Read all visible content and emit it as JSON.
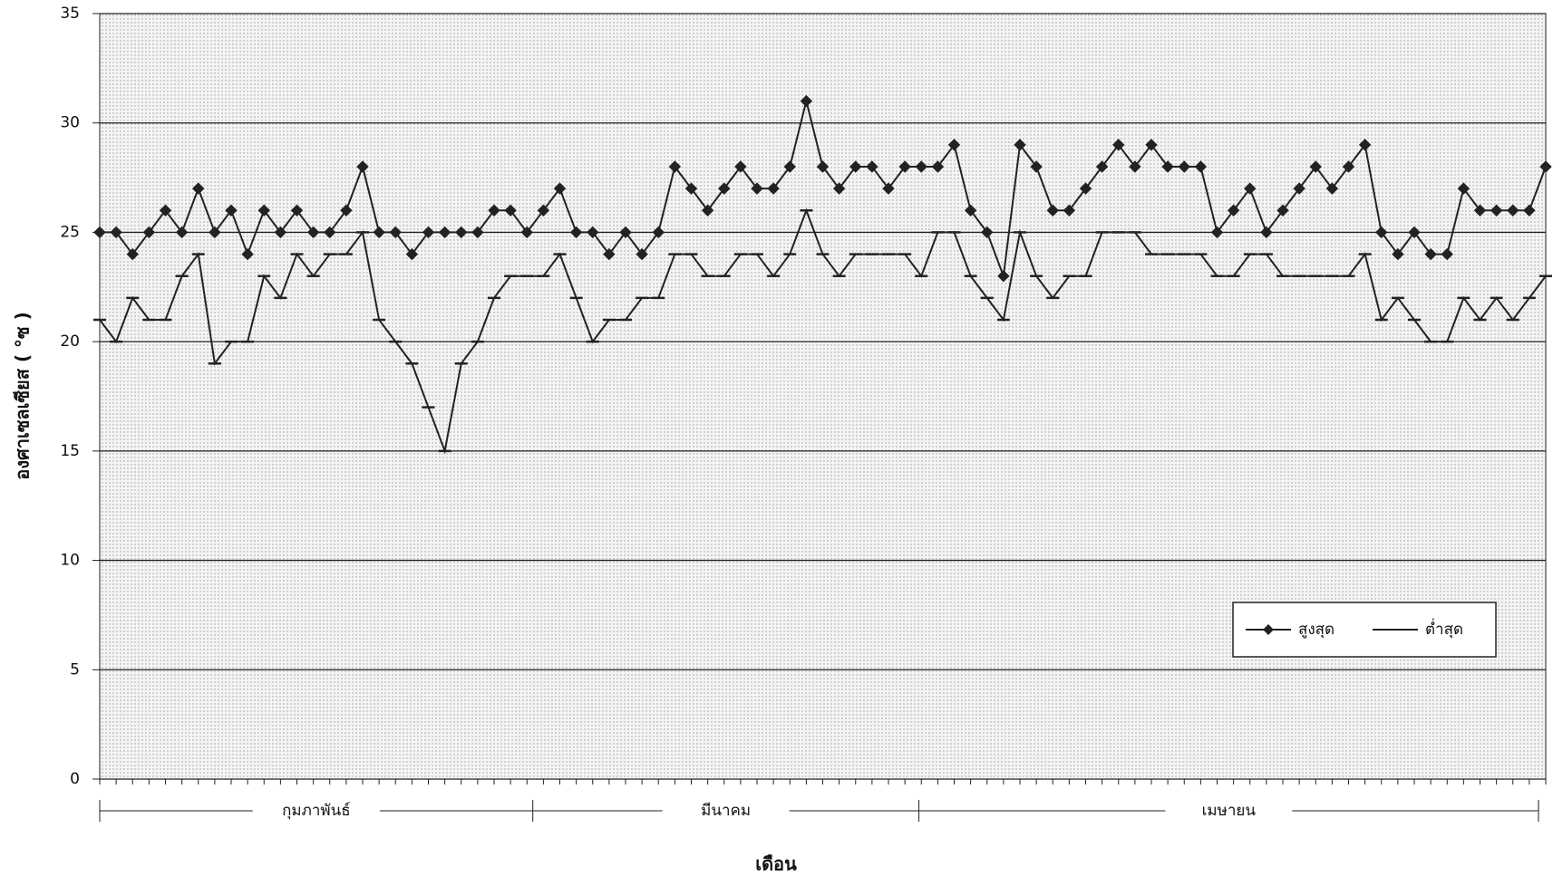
{
  "chart_data": {
    "type": "line",
    "y_label": "องศาเซลเซียส ( °ซ )",
    "x_label": "เดือน",
    "months": [
      "กุมภาพันธ์",
      "มีนาคม",
      "เมษายน"
    ],
    "categories": [
      null,
      null,
      null,
      null,
      null,
      null,
      null,
      null,
      null,
      null,
      null,
      null,
      null,
      null,
      null,
      null,
      null,
      null,
      null,
      null,
      null,
      null,
      null,
      null,
      null,
      null,
      null,
      null,
      null,
      null,
      null,
      null,
      null,
      null,
      null,
      null,
      null,
      null,
      null,
      null,
      null,
      null,
      null,
      null,
      null,
      null,
      null,
      null,
      null,
      null,
      null,
      null,
      null,
      null,
      null,
      null,
      null,
      null,
      null,
      null,
      null,
      null,
      null,
      null,
      null,
      null,
      null,
      null,
      null,
      null,
      null,
      null,
      null,
      null,
      null,
      null,
      null,
      null,
      null,
      null,
      null,
      null,
      null,
      null,
      null,
      null,
      null,
      null,
      null
    ],
    "series": [
      {
        "name": "สูงสุด",
        "color": "#222222",
        "marker": "diamond",
        "values": [
          25,
          25,
          24,
          25,
          26,
          25,
          27,
          25,
          26,
          24,
          26,
          25,
          26,
          25,
          25,
          26,
          28,
          25,
          25,
          24,
          25,
          25,
          25,
          25,
          26,
          26,
          25,
          26,
          27,
          25,
          25,
          24,
          25,
          24,
          25,
          28,
          27,
          26,
          27,
          28,
          27,
          27,
          28,
          31,
          28,
          27,
          28,
          28,
          27,
          28,
          28,
          28,
          29,
          26,
          25,
          23,
          29,
          28,
          26,
          26,
          27,
          28,
          29,
          28,
          29,
          28,
          28,
          28,
          25,
          26,
          27,
          25,
          26,
          27,
          28,
          27,
          28,
          29,
          25,
          24,
          25,
          24,
          24,
          27,
          26,
          26,
          26,
          26,
          28
        ]
      },
      {
        "name": "ต่ำสุด",
        "color": "#222222",
        "marker": "dash",
        "values": [
          21,
          20,
          22,
          21,
          21,
          23,
          24,
          19,
          20,
          20,
          23,
          22,
          24,
          23,
          24,
          24,
          25,
          21,
          20,
          19,
          17,
          15,
          19,
          20,
          22,
          23,
          23,
          23,
          24,
          22,
          20,
          21,
          21,
          22,
          22,
          24,
          24,
          23,
          23,
          24,
          24,
          23,
          24,
          26,
          24,
          23,
          24,
          24,
          24,
          24,
          23,
          25,
          25,
          23,
          22,
          21,
          25,
          23,
          22,
          23,
          23,
          25,
          25,
          25,
          24,
          24,
          24,
          24,
          23,
          23,
          24,
          24,
          23,
          23,
          23,
          23,
          23,
          24,
          21,
          22,
          21,
          20,
          20,
          22,
          21,
          22,
          21,
          22,
          23
        ]
      }
    ],
    "ylim": [
      0,
      35
    ],
    "yticks": [
      0,
      5,
      10,
      15,
      20,
      25,
      30,
      35
    ],
    "grid": true,
    "legend": "lower-right"
  }
}
